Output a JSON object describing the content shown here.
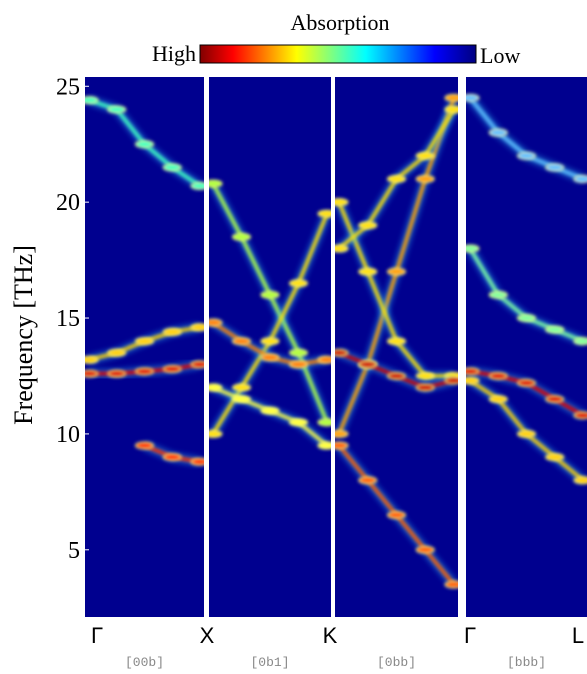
{
  "chart_data": {
    "type": "heatmap",
    "title": "Absorption",
    "colorbar_high": "High",
    "colorbar_low": "Low",
    "ylabel": "Frequency [THz]",
    "ylim": [
      2.1,
      25.4
    ],
    "yticks": [
      5,
      10,
      15,
      20,
      25
    ],
    "background": "#00008f",
    "points": [
      "Γ",
      "X",
      "K",
      "Γ",
      "L"
    ],
    "panels": [
      {
        "direction": "[00b]",
        "series": [
          {
            "color": "#e00000",
            "values": [
              12.6,
              12.6,
              12.7,
              12.8,
              13.0
            ]
          },
          {
            "color": "#ffd000",
            "values": [
              13.2,
              13.5,
              14.0,
              14.4,
              14.6
            ]
          },
          {
            "color": "#40ffc0",
            "values": [
              24.4,
              24.0,
              22.5,
              21.5,
              20.7
            ]
          },
          {
            "color": "#ff3000",
            "values": [
              null,
              null,
              9.5,
              9.0,
              8.8
            ]
          }
        ]
      },
      {
        "direction": "[0b1]",
        "series": [
          {
            "color": "#b0ff40",
            "values": [
              20.8,
              18.5,
              16.0,
              13.5,
              10.5
            ]
          },
          {
            "color": "#ffe000",
            "values": [
              10.0,
              12.0,
              14.0,
              16.5,
              19.5
            ]
          },
          {
            "color": "#ff8000",
            "values": [
              14.8,
              14.0,
              13.3,
              13.0,
              13.2
            ]
          },
          {
            "color": "#ffff40",
            "values": [
              12.0,
              11.5,
              11.0,
              10.5,
              9.5
            ]
          }
        ]
      },
      {
        "direction": "[0bb]",
        "series": [
          {
            "color": "#ffa000",
            "values": [
              10.0,
              13.0,
              17.0,
              21.0,
              24.5
            ]
          },
          {
            "color": "#ffe000",
            "values": [
              20.0,
              17.0,
              14.0,
              12.5,
              12.5
            ]
          },
          {
            "color": "#ff6000",
            "values": [
              9.5,
              8.0,
              6.5,
              5.0,
              3.5
            ]
          },
          {
            "color": "#d00000",
            "values": [
              13.5,
              13.0,
              12.5,
              12.0,
              12.3
            ]
          },
          {
            "color": "#ffe000",
            "values": [
              18.0,
              19.0,
              21.0,
              22.0,
              24.0
            ]
          }
        ]
      },
      {
        "direction": "[bbb]",
        "series": [
          {
            "color": "#e00000",
            "values": [
              12.7,
              12.5,
              12.2,
              11.5,
              10.8
            ]
          },
          {
            "color": "#60c0ff",
            "values": [
              24.5,
              23.0,
              22.0,
              21.5,
              21.0
            ]
          },
          {
            "color": "#ffd000",
            "values": [
              12.3,
              11.5,
              10.0,
              9.0,
              8.0
            ]
          },
          {
            "color": "#80ffa0",
            "values": [
              18.0,
              16.0,
              15.0,
              14.5,
              14.0
            ]
          }
        ]
      }
    ]
  }
}
